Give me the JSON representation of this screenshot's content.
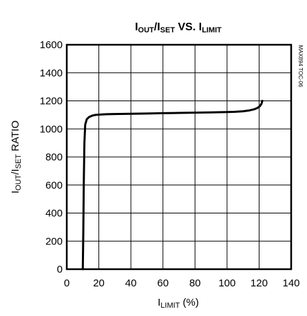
{
  "chart_data": {
    "type": "line",
    "title": {
      "p1": "I",
      "p1_sub": "OUT",
      "p2": "/I",
      "p2_sub": "SET",
      "p3": " VS. I",
      "p3_sub": "LIMIT"
    },
    "xlabel": {
      "main": "I",
      "sub": "LIMIT",
      "suffix": " (%)"
    },
    "ylabel": {
      "main": "I",
      "sub1": "OUT",
      "mid": "/I",
      "sub2": "SET",
      "suffix": " RATIO"
    },
    "side_label": "MAX894 TOC-06",
    "xlim": [
      0,
      140
    ],
    "ylim": [
      0,
      1600
    ],
    "x_ticks": [
      0,
      20,
      40,
      60,
      80,
      100,
      120,
      140
    ],
    "y_ticks": [
      0,
      200,
      400,
      600,
      800,
      1000,
      1200,
      1400,
      1600
    ],
    "grid": true,
    "series": [
      {
        "x": [
          10,
          10.3,
          10.6,
          11,
          11.5,
          12.5,
          14,
          16,
          18,
          20,
          25,
          30,
          40,
          50,
          60,
          70,
          80,
          90,
          100,
          105,
          110,
          114,
          117,
          119,
          120.5,
          121.5,
          122
        ],
        "y": [
          0,
          250,
          600,
          900,
          1030,
          1070,
          1085,
          1095,
          1100,
          1102,
          1105,
          1106,
          1108,
          1110,
          1112,
          1114,
          1116,
          1118,
          1120,
          1122,
          1126,
          1132,
          1140,
          1150,
          1162,
          1180,
          1200
        ]
      }
    ]
  }
}
